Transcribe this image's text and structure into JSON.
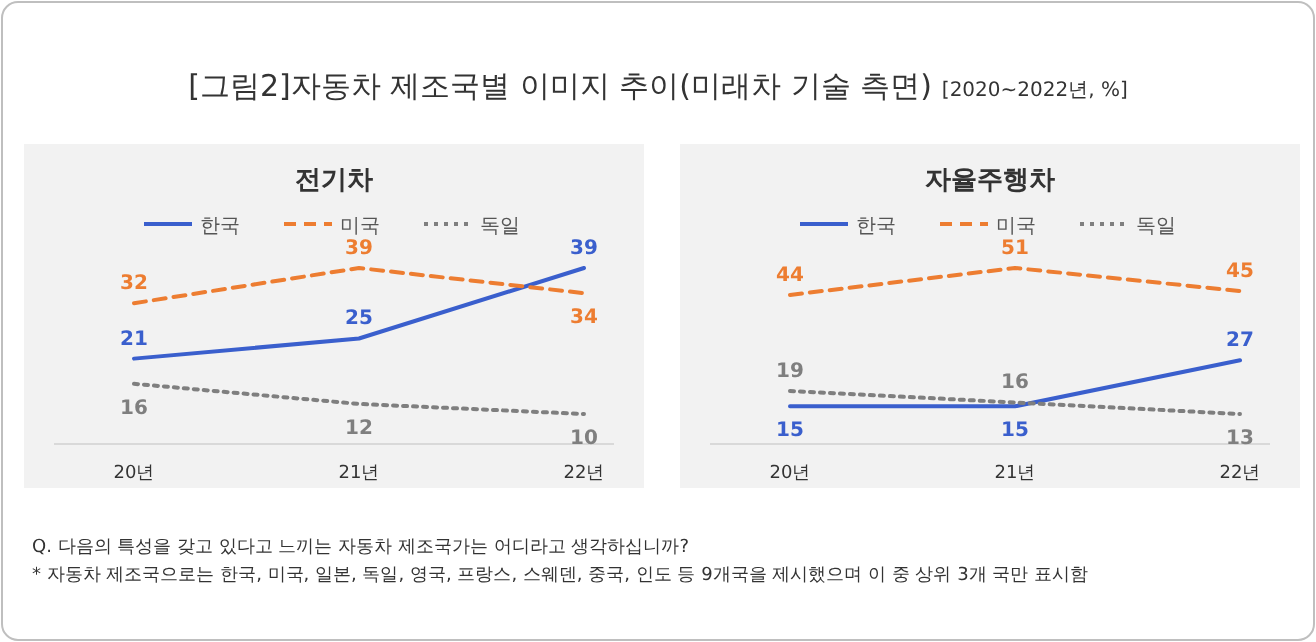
{
  "chart_data": [
    {
      "type": "other",
      "title": "[그림2]자동차 제조국별 이미지 추이(미래차 기술 측면)",
      "subtitle": "[2020~2022년, %]",
      "annotations": [
        "Q. 다음의 특성을 갖고 있다고 느끼는 자동차 제조국가는 어디라고 생각하십니까?",
        "* 자동차 제조국으로는 한국, 미국, 일본, 독일, 영국, 프랑스, 스웨덴, 중국, 인도 등 9개국을 제시했으며 이 중 상위 3개 국만 표시함"
      ]
    },
    {
      "type": "line",
      "title": "전기차",
      "categories": [
        "20년",
        "21년",
        "22년"
      ],
      "legend": "top",
      "data_labels": true,
      "series": [
        {
          "name": "한국",
          "color": "#3a5fcd",
          "line_style": "solid",
          "values": [
            21,
            25,
            39
          ]
        },
        {
          "name": "미국",
          "color": "#ed7d31",
          "line_style": "dashed",
          "values": [
            32,
            39,
            34
          ]
        },
        {
          "name": "독일",
          "color": "#7f7f7f",
          "line_style": "dotted",
          "values": [
            16,
            12,
            10
          ]
        }
      ]
    },
    {
      "type": "line",
      "title": "자율주행차",
      "categories": [
        "20년",
        "21년",
        "22년"
      ],
      "legend": "top",
      "data_labels": true,
      "series": [
        {
          "name": "한국",
          "color": "#3a5fcd",
          "line_style": "solid",
          "values": [
            15,
            15,
            27
          ]
        },
        {
          "name": "미국",
          "color": "#ed7d31",
          "line_style": "dashed",
          "values": [
            44,
            51,
            45
          ]
        },
        {
          "name": "독일",
          "color": "#7f7f7f",
          "line_style": "dotted",
          "values": [
            19,
            16,
            13
          ]
        }
      ]
    }
  ]
}
